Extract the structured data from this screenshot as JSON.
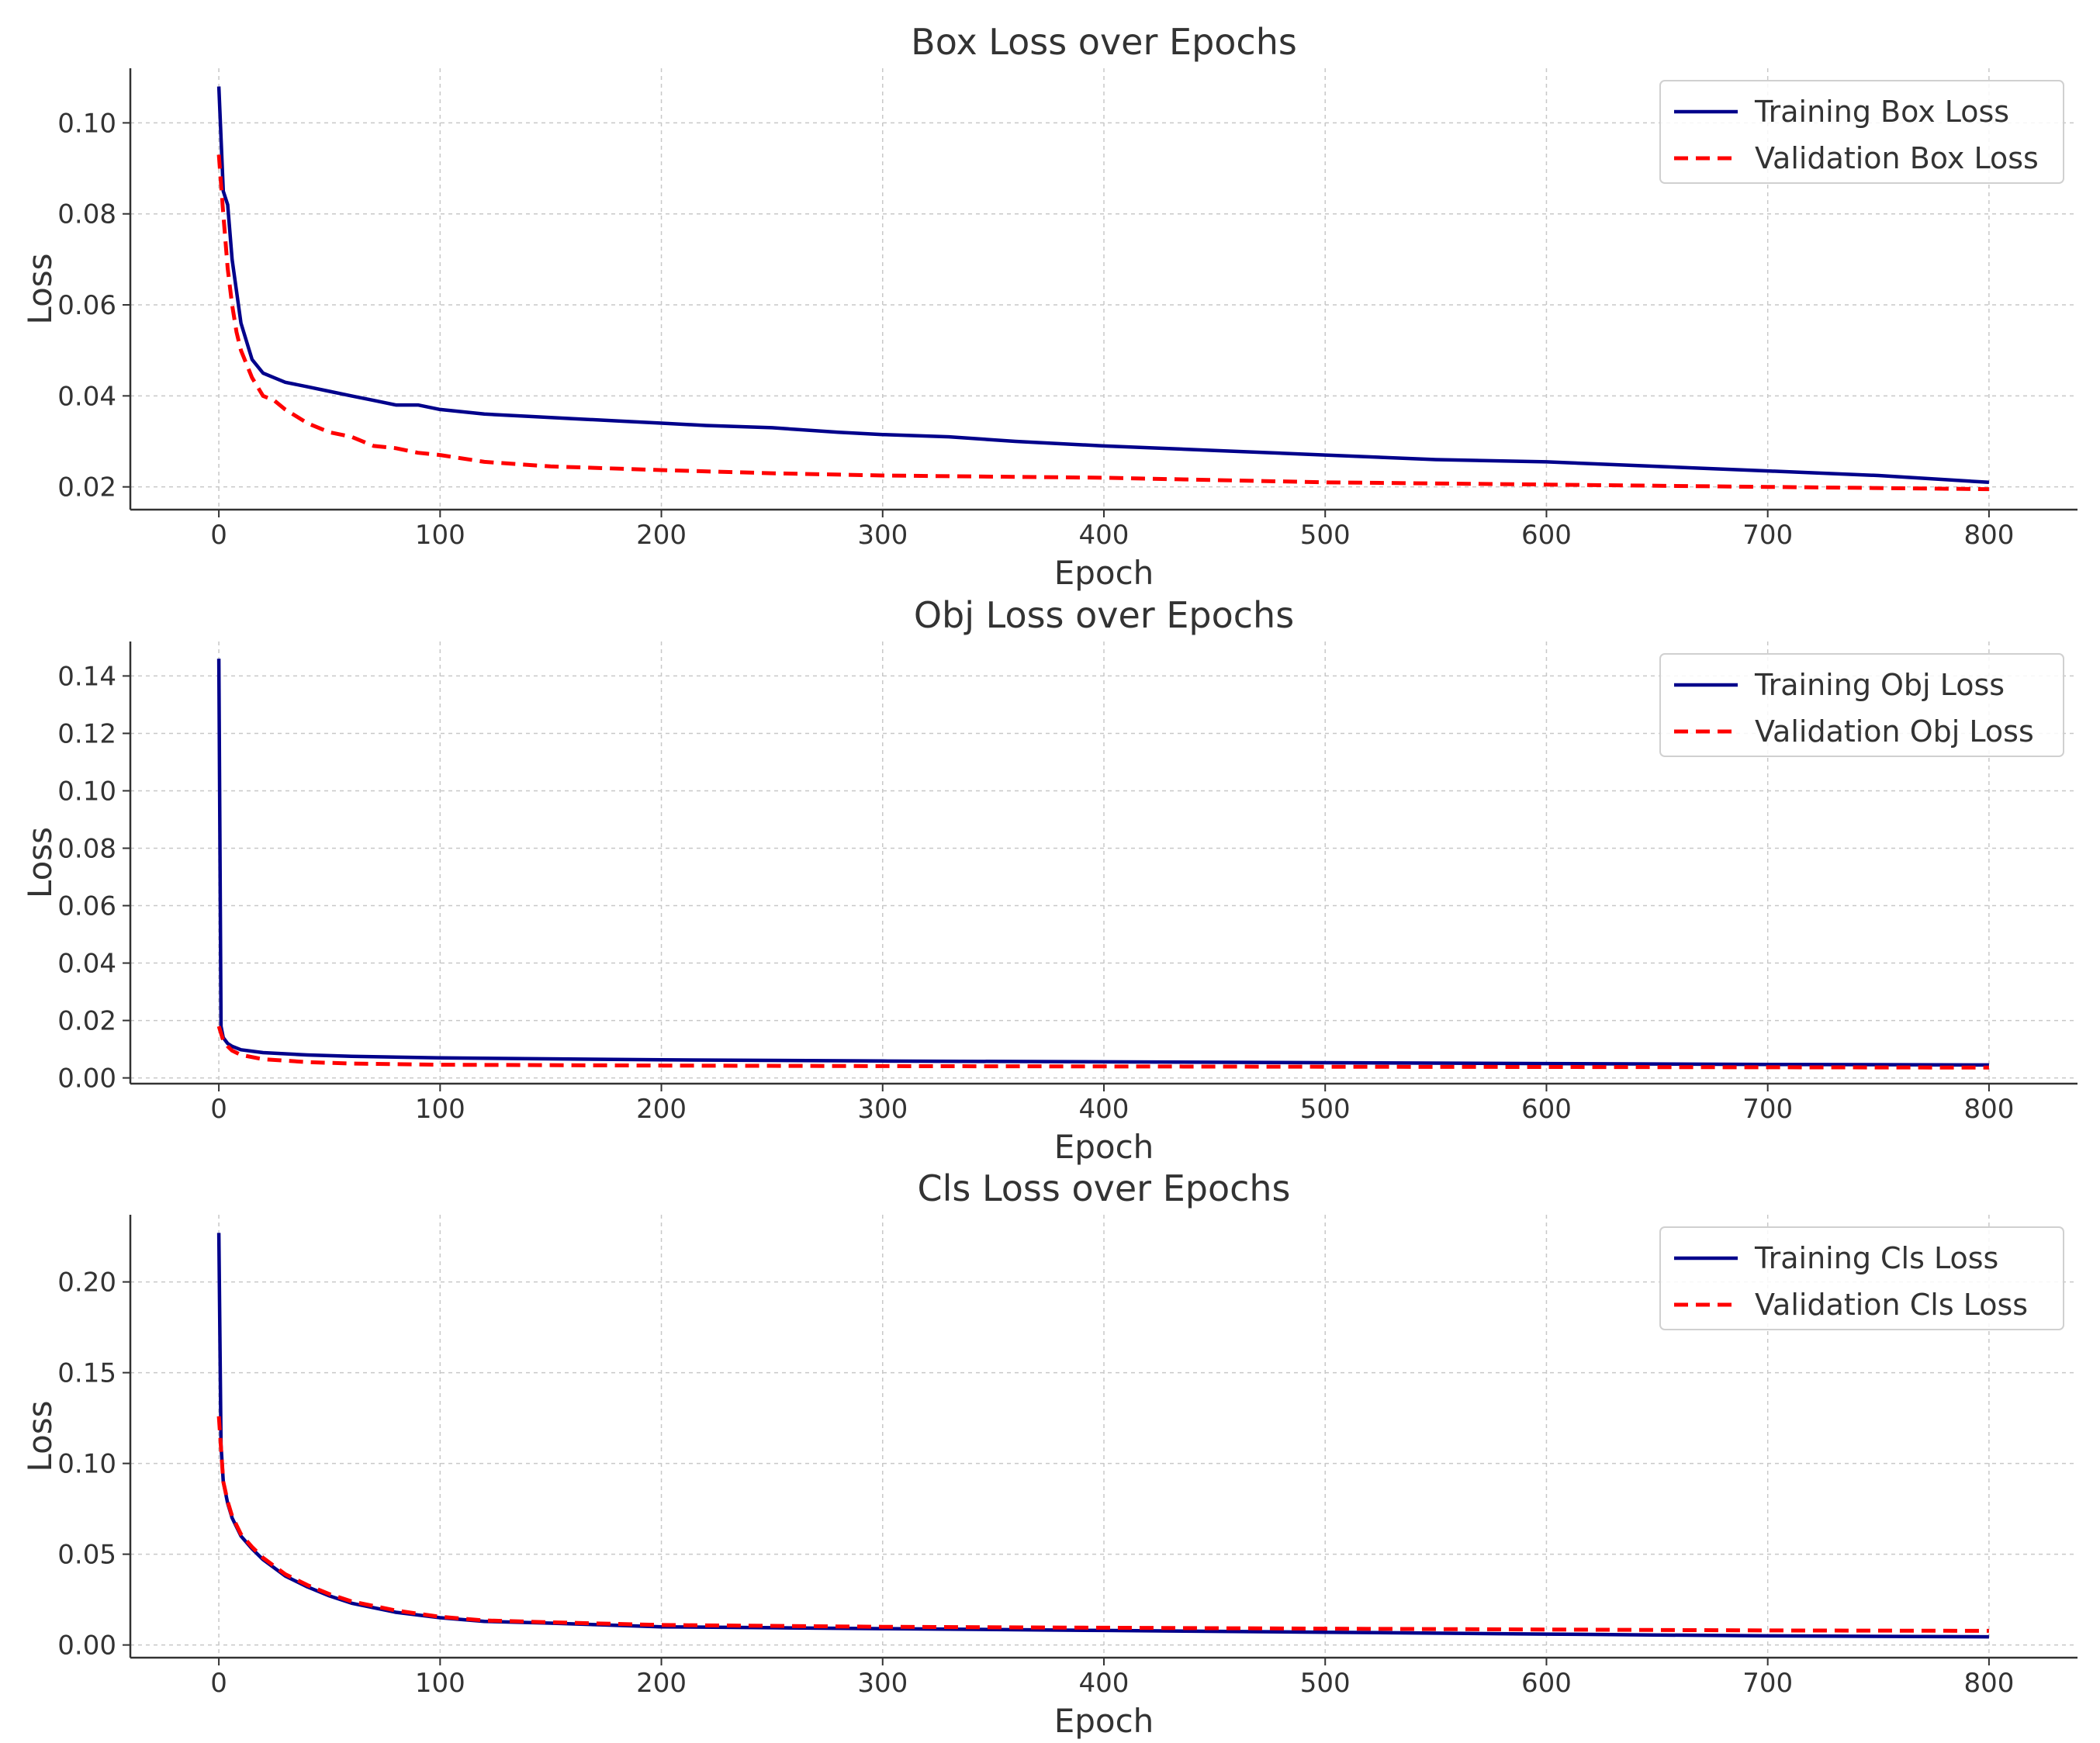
{
  "chart_data": [
    {
      "type": "line",
      "title": "Box Loss over Epochs",
      "xlabel": "Epoch",
      "ylabel": "Loss",
      "xlim": [
        -40,
        840
      ],
      "ylim": [
        0.015,
        0.112
      ],
      "xticks": [
        0,
        100,
        200,
        300,
        400,
        500,
        600,
        700,
        800
      ],
      "xtick_labels": [
        "0",
        "100",
        "200",
        "300",
        "400",
        "500",
        "600",
        "700",
        "800"
      ],
      "yticks": [
        0.02,
        0.04,
        0.06,
        0.08,
        0.1
      ],
      "ytick_labels": [
        "0.02",
        "0.04",
        "0.06",
        "0.08",
        "0.10"
      ],
      "grid": true,
      "legend_position": "top-right",
      "series": [
        {
          "name": "Training Box Loss",
          "color": "#00008b",
          "style": "solid",
          "x": [
            0,
            2,
            4,
            6,
            8,
            10,
            15,
            20,
            25,
            30,
            40,
            50,
            60,
            70,
            80,
            90,
            100,
            120,
            140,
            160,
            180,
            200,
            220,
            250,
            280,
            300,
            330,
            360,
            400,
            450,
            500,
            550,
            600,
            650,
            700,
            750,
            800
          ],
          "y": [
            0.108,
            0.085,
            0.082,
            0.07,
            0.063,
            0.056,
            0.048,
            0.045,
            0.044,
            0.043,
            0.042,
            0.041,
            0.04,
            0.039,
            0.038,
            0.038,
            0.037,
            0.036,
            0.0355,
            0.035,
            0.0345,
            0.034,
            0.0335,
            0.033,
            0.032,
            0.0315,
            0.031,
            0.03,
            0.029,
            0.028,
            0.027,
            0.026,
            0.0255,
            0.0245,
            0.0235,
            0.0225,
            0.021
          ]
        },
        {
          "name": "Validation Box Loss",
          "color": "#ff0000",
          "style": "dashed",
          "x": [
            0,
            2,
            4,
            6,
            8,
            10,
            15,
            20,
            25,
            30,
            40,
            50,
            60,
            70,
            80,
            90,
            100,
            120,
            150,
            200,
            250,
            300,
            400,
            500,
            600,
            700,
            800
          ],
          "y": [
            0.093,
            0.08,
            0.068,
            0.06,
            0.054,
            0.05,
            0.044,
            0.04,
            0.039,
            0.037,
            0.034,
            0.032,
            0.031,
            0.029,
            0.0285,
            0.0275,
            0.027,
            0.0255,
            0.0245,
            0.0237,
            0.023,
            0.0225,
            0.022,
            0.021,
            0.0205,
            0.02,
            0.0195
          ]
        }
      ]
    },
    {
      "type": "line",
      "title": "Obj Loss over Epochs",
      "xlabel": "Epoch",
      "ylabel": "Loss",
      "xlim": [
        -40,
        840
      ],
      "ylim": [
        -0.002,
        0.152
      ],
      "xticks": [
        0,
        100,
        200,
        300,
        400,
        500,
        600,
        700,
        800
      ],
      "xtick_labels": [
        "0",
        "100",
        "200",
        "300",
        "400",
        "500",
        "600",
        "700",
        "800"
      ],
      "yticks": [
        0.0,
        0.02,
        0.04,
        0.06,
        0.08,
        0.1,
        0.12,
        0.14
      ],
      "ytick_labels": [
        "0.00",
        "0.02",
        "0.04",
        "0.06",
        "0.08",
        "0.10",
        "0.12",
        "0.14"
      ],
      "grid": true,
      "legend_position": "top-right",
      "series": [
        {
          "name": "Training Obj Loss",
          "color": "#00008b",
          "style": "solid",
          "x": [
            0,
            1,
            2,
            4,
            6,
            10,
            20,
            40,
            60,
            100,
            200,
            300,
            400,
            500,
            600,
            700,
            800
          ],
          "y": [
            0.146,
            0.018,
            0.014,
            0.012,
            0.011,
            0.0098,
            0.0088,
            0.008,
            0.0075,
            0.007,
            0.0063,
            0.0059,
            0.0056,
            0.0053,
            0.005,
            0.0047,
            0.0045
          ]
        },
        {
          "name": "Validation Obj Loss",
          "color": "#ff0000",
          "style": "dashed",
          "x": [
            0,
            2,
            4,
            6,
            10,
            20,
            40,
            60,
            100,
            200,
            300,
            400,
            500,
            600,
            700,
            800
          ],
          "y": [
            0.018,
            0.013,
            0.011,
            0.0095,
            0.008,
            0.0065,
            0.0055,
            0.005,
            0.0046,
            0.0043,
            0.0041,
            0.004,
            0.0039,
            0.0038,
            0.0037,
            0.0036
          ]
        }
      ]
    },
    {
      "type": "line",
      "title": "Cls Loss over Epochs",
      "xlabel": "Epoch",
      "ylabel": "Loss",
      "xlim": [
        -40,
        840
      ],
      "ylim": [
        -0.007,
        0.237
      ],
      "xticks": [
        0,
        100,
        200,
        300,
        400,
        500,
        600,
        700,
        800
      ],
      "xtick_labels": [
        "0",
        "100",
        "200",
        "300",
        "400",
        "500",
        "600",
        "700",
        "800"
      ],
      "yticks": [
        0.0,
        0.05,
        0.1,
        0.15,
        0.2
      ],
      "ytick_labels": [
        "0.00",
        "0.05",
        "0.10",
        "0.15",
        "0.20"
      ],
      "grid": true,
      "legend_position": "top-right",
      "series": [
        {
          "name": "Training Cls Loss",
          "color": "#00008b",
          "style": "solid",
          "x": [
            0,
            1,
            2,
            4,
            6,
            10,
            15,
            20,
            30,
            40,
            50,
            60,
            80,
            100,
            120,
            150,
            200,
            250,
            300,
            400,
            500,
            600,
            700,
            800
          ],
          "y": [
            0.227,
            0.11,
            0.09,
            0.078,
            0.07,
            0.06,
            0.053,
            0.047,
            0.038,
            0.032,
            0.027,
            0.023,
            0.018,
            0.015,
            0.013,
            0.012,
            0.01,
            0.0095,
            0.009,
            0.008,
            0.007,
            0.006,
            0.005,
            0.0045
          ]
        },
        {
          "name": "Validation Cls Loss",
          "color": "#ff0000",
          "style": "dashed",
          "x": [
            0,
            2,
            4,
            6,
            10,
            15,
            20,
            30,
            40,
            50,
            60,
            80,
            100,
            120,
            150,
            200,
            250,
            300,
            400,
            500,
            600,
            700,
            800
          ],
          "y": [
            0.126,
            0.09,
            0.079,
            0.071,
            0.061,
            0.054,
            0.048,
            0.039,
            0.033,
            0.028,
            0.024,
            0.019,
            0.0155,
            0.0135,
            0.0125,
            0.011,
            0.0105,
            0.01,
            0.0095,
            0.009,
            0.0085,
            0.008,
            0.0078
          ]
        }
      ]
    }
  ]
}
